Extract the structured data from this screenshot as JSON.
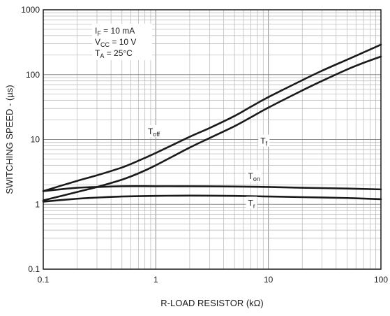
{
  "chart_data": {
    "type": "line",
    "title": "",
    "xlabel": "R-LOAD RESISTOR (kΩ)",
    "ylabel": "SWITCHING SPEED - (µs)",
    "xscale": "log",
    "yscale": "log",
    "xlim": [
      0.1,
      100
    ],
    "ylim": [
      0.1,
      1000
    ],
    "grid": true,
    "x_ticks": [
      "0.1",
      "1",
      "10",
      "100"
    ],
    "y_ticks": [
      "0.1",
      "1",
      "10",
      "100",
      "1000"
    ],
    "conditions": [
      {
        "main": "I",
        "sub": "F",
        "rest": " = 10 mA"
      },
      {
        "main": "V",
        "sub": "CC",
        "rest": " = 10 V"
      },
      {
        "main": "T",
        "sub": "A",
        "rest": " = 25°C"
      }
    ],
    "series": [
      {
        "name": "T",
        "sub": "off",
        "color": "#1a1a1a",
        "x": [
          0.1,
          0.2,
          0.3,
          0.5,
          0.7,
          1,
          2,
          3,
          5,
          7,
          10,
          20,
          30,
          50,
          70,
          100
        ],
        "y": [
          1.6,
          2.3,
          2.8,
          3.7,
          4.7,
          6.2,
          11,
          15,
          23,
          32,
          45,
          82,
          115,
          170,
          220,
          290
        ]
      },
      {
        "name": "T",
        "sub": "f",
        "color": "#1a1a1a",
        "x": [
          0.1,
          0.2,
          0.3,
          0.5,
          0.7,
          1,
          2,
          3,
          5,
          7,
          10,
          20,
          30,
          50,
          70,
          100
        ],
        "y": [
          1.15,
          1.55,
          1.85,
          2.4,
          3.0,
          4.0,
          7.5,
          10.5,
          16,
          22,
          31,
          57,
          80,
          120,
          152,
          190
        ]
      },
      {
        "name": "T",
        "sub": "on",
        "color": "#1a1a1a",
        "x": [
          0.1,
          0.2,
          0.3,
          0.5,
          1,
          2,
          5,
          10,
          20,
          50,
          100
        ],
        "y": [
          1.6,
          1.8,
          1.85,
          1.9,
          1.9,
          1.9,
          1.88,
          1.85,
          1.8,
          1.75,
          1.7
        ]
      },
      {
        "name": "T",
        "sub": "r",
        "color": "#1a1a1a",
        "x": [
          0.1,
          0.2,
          0.3,
          0.5,
          1,
          2,
          5,
          10,
          20,
          50,
          100
        ],
        "y": [
          1.1,
          1.22,
          1.27,
          1.32,
          1.35,
          1.36,
          1.35,
          1.32,
          1.29,
          1.25,
          1.2
        ]
      }
    ],
    "curve_labels": [
      {
        "series": 0,
        "x": 0.85,
        "y": 12
      },
      {
        "series": 1,
        "x": 8.5,
        "y": 8.6
      },
      {
        "series": 2,
        "x": 6.6,
        "y": 2.45
      },
      {
        "series": 3,
        "x": 6.6,
        "y": 0.95
      }
    ]
  }
}
